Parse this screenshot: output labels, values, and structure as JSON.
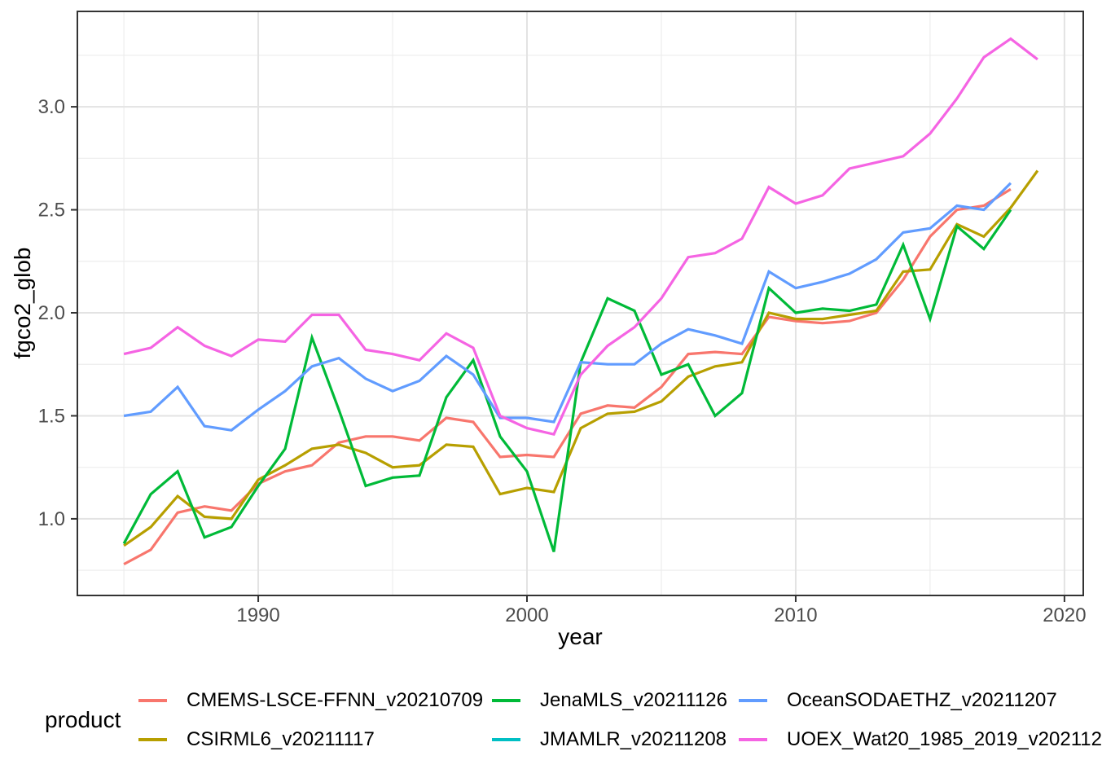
{
  "chart_data": {
    "type": "line",
    "title": "",
    "xlabel": "year",
    "ylabel": "fgco2_glob",
    "x_range": [
      1983.27,
      2020.7
    ],
    "y_range": [
      0.628,
      3.463
    ],
    "x_major_ticks": [
      1990,
      2000,
      2010,
      2020
    ],
    "x_minor_ticks": [
      1985,
      1995,
      2005,
      2015
    ],
    "x_tick_labels": [
      "1990",
      "2000",
      "2010",
      "2020"
    ],
    "y_major_ticks": [
      1.0,
      1.5,
      2.0,
      2.5,
      3.0
    ],
    "y_minor_ticks": [
      0.75,
      1.25,
      1.75,
      2.25,
      2.75,
      3.25
    ],
    "y_tick_labels": [
      "1.0",
      "1.5",
      "2.0",
      "2.5",
      "3.0"
    ],
    "grid": true,
    "legend_position": "bottom",
    "series": [
      {
        "name": "CMEMS-LSCE-FFNN_v20210709",
        "color": "#F8766D",
        "visible_in_plot": true,
        "points": [
          [
            1985,
            0.78
          ],
          [
            1986,
            0.85
          ],
          [
            1987,
            1.03
          ],
          [
            1988,
            1.06
          ],
          [
            1989,
            1.04
          ],
          [
            1990,
            1.17
          ],
          [
            1991,
            1.23
          ],
          [
            1992,
            1.26
          ],
          [
            1993,
            1.37
          ],
          [
            1994,
            1.4
          ],
          [
            1995,
            1.4
          ],
          [
            1996,
            1.38
          ],
          [
            1997,
            1.49
          ],
          [
            1998,
            1.47
          ],
          [
            1999,
            1.3
          ],
          [
            2000,
            1.31
          ],
          [
            2001,
            1.3
          ],
          [
            2002,
            1.51
          ],
          [
            2003,
            1.55
          ],
          [
            2004,
            1.54
          ],
          [
            2005,
            1.64
          ],
          [
            2006,
            1.8
          ],
          [
            2007,
            1.81
          ],
          [
            2008,
            1.8
          ],
          [
            2009,
            1.98
          ],
          [
            2010,
            1.96
          ],
          [
            2011,
            1.95
          ],
          [
            2012,
            1.96
          ],
          [
            2013,
            2.0
          ],
          [
            2014,
            2.16
          ],
          [
            2015,
            2.37
          ],
          [
            2016,
            2.5
          ],
          [
            2017,
            2.52
          ],
          [
            2018,
            2.6
          ]
        ]
      },
      {
        "name": "CSIRML6_v20211117",
        "color": "#B79F00",
        "visible_in_plot": true,
        "points": [
          [
            1985,
            0.87
          ],
          [
            1986,
            0.96
          ],
          [
            1987,
            1.11
          ],
          [
            1988,
            1.01
          ],
          [
            1989,
            1.0
          ],
          [
            1990,
            1.19
          ],
          [
            1991,
            1.26
          ],
          [
            1992,
            1.34
          ],
          [
            1993,
            1.36
          ],
          [
            1994,
            1.32
          ],
          [
            1995,
            1.25
          ],
          [
            1996,
            1.26
          ],
          [
            1997,
            1.36
          ],
          [
            1998,
            1.35
          ],
          [
            1999,
            1.12
          ],
          [
            2000,
            1.15
          ],
          [
            2001,
            1.13
          ],
          [
            2002,
            1.44
          ],
          [
            2003,
            1.51
          ],
          [
            2004,
            1.52
          ],
          [
            2005,
            1.57
          ],
          [
            2006,
            1.69
          ],
          [
            2007,
            1.74
          ],
          [
            2008,
            1.76
          ],
          [
            2009,
            2.0
          ],
          [
            2010,
            1.97
          ],
          [
            2011,
            1.97
          ],
          [
            2012,
            1.99
          ],
          [
            2013,
            2.01
          ],
          [
            2014,
            2.2
          ],
          [
            2015,
            2.21
          ],
          [
            2016,
            2.43
          ],
          [
            2017,
            2.37
          ],
          [
            2018,
            2.51
          ],
          [
            2019,
            2.69
          ]
        ]
      },
      {
        "name": "JenaMLS_v20211126",
        "color": "#00BA38",
        "visible_in_plot": true,
        "points": [
          [
            1985,
            0.88
          ],
          [
            1986,
            1.12
          ],
          [
            1987,
            1.23
          ],
          [
            1988,
            0.91
          ],
          [
            1989,
            0.96
          ],
          [
            1990,
            1.16
          ],
          [
            1991,
            1.34
          ],
          [
            1992,
            1.88
          ],
          [
            1993,
            1.53
          ],
          [
            1994,
            1.16
          ],
          [
            1995,
            1.2
          ],
          [
            1996,
            1.21
          ],
          [
            1997,
            1.59
          ],
          [
            1998,
            1.77
          ],
          [
            1999,
            1.4
          ],
          [
            2000,
            1.23
          ],
          [
            2001,
            0.84
          ],
          [
            2002,
            1.76
          ],
          [
            2003,
            2.07
          ],
          [
            2004,
            2.01
          ],
          [
            2005,
            1.7
          ],
          [
            2006,
            1.75
          ],
          [
            2007,
            1.5
          ],
          [
            2008,
            1.61
          ],
          [
            2009,
            2.12
          ],
          [
            2010,
            2.0
          ],
          [
            2011,
            2.02
          ],
          [
            2012,
            2.01
          ],
          [
            2013,
            2.04
          ],
          [
            2014,
            2.33
          ],
          [
            2015,
            1.97
          ],
          [
            2016,
            2.42
          ],
          [
            2017,
            2.31
          ],
          [
            2018,
            2.5
          ]
        ]
      },
      {
        "name": "JMAMLR_v20211208",
        "color": "#00BFC4",
        "visible_in_plot": false,
        "points": []
      },
      {
        "name": "OceanSODAETHZ_v20211207",
        "color": "#619CFF",
        "visible_in_plot": true,
        "points": [
          [
            1985,
            1.5
          ],
          [
            1986,
            1.52
          ],
          [
            1987,
            1.64
          ],
          [
            1988,
            1.45
          ],
          [
            1989,
            1.43
          ],
          [
            1990,
            1.53
          ],
          [
            1991,
            1.62
          ],
          [
            1992,
            1.74
          ],
          [
            1993,
            1.78
          ],
          [
            1994,
            1.68
          ],
          [
            1995,
            1.62
          ],
          [
            1996,
            1.67
          ],
          [
            1997,
            1.79
          ],
          [
            1998,
            1.7
          ],
          [
            1999,
            1.49
          ],
          [
            2000,
            1.49
          ],
          [
            2001,
            1.47
          ],
          [
            2002,
            1.76
          ],
          [
            2003,
            1.75
          ],
          [
            2004,
            1.75
          ],
          [
            2005,
            1.85
          ],
          [
            2006,
            1.92
          ],
          [
            2007,
            1.89
          ],
          [
            2008,
            1.85
          ],
          [
            2009,
            2.2
          ],
          [
            2010,
            2.12
          ],
          [
            2011,
            2.15
          ],
          [
            2012,
            2.19
          ],
          [
            2013,
            2.26
          ],
          [
            2014,
            2.39
          ],
          [
            2015,
            2.41
          ],
          [
            2016,
            2.52
          ],
          [
            2017,
            2.5
          ],
          [
            2018,
            2.63
          ]
        ]
      },
      {
        "name": "UOEX_Wat20_1985_2019_v202112",
        "color": "#F564E3",
        "visible_in_plot": true,
        "points": [
          [
            1985,
            1.8
          ],
          [
            1986,
            1.83
          ],
          [
            1987,
            1.93
          ],
          [
            1988,
            1.84
          ],
          [
            1989,
            1.79
          ],
          [
            1990,
            1.87
          ],
          [
            1991,
            1.86
          ],
          [
            1992,
            1.99
          ],
          [
            1993,
            1.99
          ],
          [
            1994,
            1.82
          ],
          [
            1995,
            1.8
          ],
          [
            1996,
            1.77
          ],
          [
            1997,
            1.9
          ],
          [
            1998,
            1.83
          ],
          [
            1999,
            1.5
          ],
          [
            2000,
            1.44
          ],
          [
            2001,
            1.41
          ],
          [
            2002,
            1.7
          ],
          [
            2003,
            1.84
          ],
          [
            2004,
            1.93
          ],
          [
            2005,
            2.07
          ],
          [
            2006,
            2.27
          ],
          [
            2007,
            2.29
          ],
          [
            2008,
            2.36
          ],
          [
            2009,
            2.61
          ],
          [
            2010,
            2.53
          ],
          [
            2011,
            2.57
          ],
          [
            2012,
            2.7
          ],
          [
            2013,
            2.73
          ],
          [
            2014,
            2.76
          ],
          [
            2015,
            2.87
          ],
          [
            2016,
            3.04
          ],
          [
            2017,
            3.24
          ],
          [
            2018,
            3.33
          ],
          [
            2019,
            3.23
          ]
        ]
      }
    ]
  },
  "legend": {
    "title": "product",
    "items": [
      {
        "label": "CMEMS-LSCE-FFNN_v20210709",
        "color": "#F8766D"
      },
      {
        "label": "CSIRML6_v20211117",
        "color": "#B79F00"
      },
      {
        "label": "JenaMLS_v20211126",
        "color": "#00BA38"
      },
      {
        "label": "JMAMLR_v20211208",
        "color": "#00BFC4"
      },
      {
        "label": "OceanSODAETHZ_v20211207",
        "color": "#619CFF"
      },
      {
        "label": "UOEX_Wat20_1985_2019_v202112",
        "color": "#F564E3"
      }
    ]
  },
  "colors": {
    "grid_major": "#E3E3E3",
    "grid_minor": "#EDEDED",
    "panel_border": "#333333",
    "tick_mark": "#333333",
    "tick_text": "#4D4D4D",
    "background": "#FFFFFF"
  }
}
